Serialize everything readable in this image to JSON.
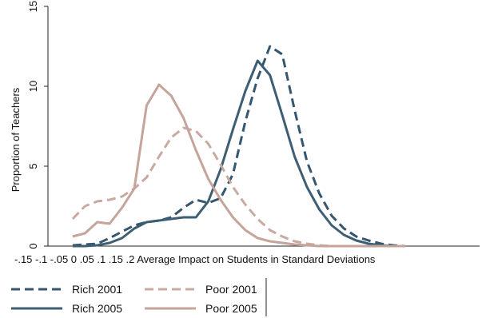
{
  "chart_data": {
    "type": "line",
    "xlabel": "Average Impact on Students in Standard Deviations",
    "ylabel": "Proportion of Teachers",
    "xlim": [
      -0.15,
      0.2
    ],
    "ylim": [
      0,
      15
    ],
    "x_ticks": [
      "-.15",
      "-.1",
      "-.05",
      "0",
      ".05",
      ".1",
      ".15",
      ".2"
    ],
    "y_ticks": [
      0,
      5,
      10,
      15
    ],
    "legend": "bottom-left",
    "grid": false,
    "series": [
      {
        "name": "Rich 2001",
        "color": "#34566e",
        "dash": true,
        "x": [
          -0.13,
          -0.12,
          -0.11,
          -0.1,
          -0.09,
          -0.08,
          -0.07,
          -0.06,
          -0.05,
          -0.04,
          -0.03,
          -0.02,
          -0.01,
          0.0,
          0.01,
          0.02,
          0.03,
          0.04,
          0.05,
          0.06,
          0.07,
          0.08,
          0.09,
          0.1,
          0.11,
          0.12,
          0.13,
          0.14
        ],
        "y": [
          0.05,
          0.1,
          0.15,
          0.5,
          0.9,
          1.3,
          1.5,
          1.6,
          1.8,
          2.4,
          2.9,
          2.7,
          3.0,
          4.5,
          7.8,
          10.5,
          12.5,
          12.0,
          8.5,
          5.3,
          3.3,
          1.9,
          1.1,
          0.6,
          0.35,
          0.15,
          0.05,
          0.0
        ],
        "color_name": "dark slate blue"
      },
      {
        "name": "Rich 2005",
        "color": "#3d5e73",
        "dash": false,
        "x": [
          -0.13,
          -0.12,
          -0.11,
          -0.1,
          -0.09,
          -0.08,
          -0.07,
          -0.06,
          -0.05,
          -0.04,
          -0.03,
          -0.02,
          -0.01,
          0.0,
          0.01,
          0.02,
          0.03,
          0.04,
          0.05,
          0.06,
          0.07,
          0.08,
          0.09,
          0.1,
          0.11,
          0.12,
          0.13,
          0.14
        ],
        "y": [
          0.0,
          0.0,
          0.05,
          0.2,
          0.5,
          1.1,
          1.5,
          1.6,
          1.7,
          1.8,
          1.8,
          2.8,
          4.8,
          7.3,
          9.7,
          11.6,
          10.7,
          8.2,
          5.6,
          3.7,
          2.3,
          1.3,
          0.7,
          0.35,
          0.15,
          0.05,
          0.0,
          0.0
        ],
        "color_name": "slate blue"
      },
      {
        "name": "Poor 2001",
        "color": "#c8aaa1",
        "dash": true,
        "x": [
          -0.13,
          -0.12,
          -0.11,
          -0.1,
          -0.09,
          -0.08,
          -0.07,
          -0.06,
          -0.05,
          -0.04,
          -0.03,
          -0.02,
          -0.01,
          0.0,
          0.01,
          0.02,
          0.03,
          0.04,
          0.05,
          0.06,
          0.07,
          0.08,
          0.09,
          0.1,
          0.11,
          0.12,
          0.13,
          0.14
        ],
        "y": [
          1.7,
          2.5,
          2.8,
          2.9,
          3.1,
          3.6,
          4.3,
          5.6,
          6.8,
          7.4,
          7.2,
          6.4,
          5.1,
          3.7,
          2.6,
          1.7,
          1.0,
          0.6,
          0.3,
          0.15,
          0.05,
          0.0,
          0.0,
          0.0,
          0.0,
          0.0,
          0.0,
          0.0
        ],
        "color_name": "dusty rose"
      },
      {
        "name": "Poor 2005",
        "color": "#c4a49b",
        "dash": false,
        "x": [
          -0.13,
          -0.12,
          -0.11,
          -0.1,
          -0.09,
          -0.08,
          -0.07,
          -0.06,
          -0.05,
          -0.04,
          -0.03,
          -0.02,
          -0.01,
          0.0,
          0.01,
          0.02,
          0.03,
          0.04,
          0.05,
          0.06,
          0.07,
          0.08,
          0.09,
          0.1,
          0.11,
          0.12,
          0.13,
          0.14
        ],
        "y": [
          0.6,
          0.8,
          1.5,
          1.4,
          2.4,
          3.6,
          8.8,
          10.1,
          9.4,
          8.0,
          6.0,
          4.2,
          2.9,
          1.8,
          1.0,
          0.5,
          0.3,
          0.2,
          0.1,
          0.05,
          0.0,
          0.0,
          0.0,
          0.0,
          0.0,
          0.0,
          0.0,
          0.0
        ],
        "color_name": "rose brown"
      }
    ]
  }
}
